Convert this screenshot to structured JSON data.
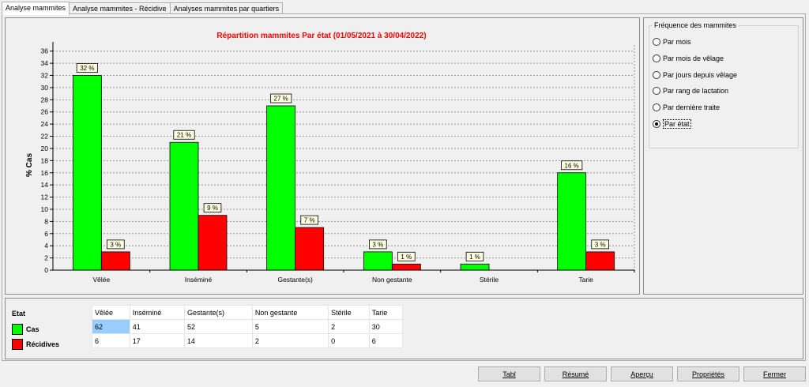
{
  "tabs": [
    {
      "label": "Analyse mammites",
      "active": true
    },
    {
      "label": "Analyse mammites - Récidive",
      "active": false
    },
    {
      "label": "Analyses mammites par quartiers",
      "active": false
    }
  ],
  "chart_data": {
    "type": "bar",
    "title": "Répartition mammites Par état (01/05/2021 à 30/04/2022)",
    "ylabel": "% Cas",
    "xlabel": "",
    "categories": [
      "Vêlée",
      "Inséminé",
      "Gestante(s)",
      "Non gestante",
      "Stérile",
      "Tarie"
    ],
    "ylim": [
      0,
      37
    ],
    "yticks": [
      0,
      2,
      4,
      6,
      8,
      10,
      12,
      14,
      16,
      18,
      20,
      22,
      24,
      26,
      28,
      30,
      32,
      34,
      36
    ],
    "grid": true,
    "series": [
      {
        "name": "Cas",
        "color": "#00ff00",
        "values": [
          32,
          21,
          27,
          3,
          1,
          16
        ],
        "labels": [
          "32 %",
          "21 %",
          "27 %",
          "3 %",
          "1 %",
          "16 %"
        ]
      },
      {
        "name": "Récidives",
        "color": "#ff0000",
        "values": [
          3,
          9,
          7,
          1,
          null,
          3
        ],
        "labels": [
          "3 %",
          "9 %",
          "7 %",
          "1 %",
          "",
          "3 %"
        ]
      }
    ]
  },
  "frequency": {
    "title": "Fréquence des mammites",
    "options": [
      {
        "label": "Par mois",
        "checked": false
      },
      {
        "label": "Par mois de vêlage",
        "checked": false
      },
      {
        "label": "Par jours depuis vêlage",
        "checked": false
      },
      {
        "label": "Par rang de lactation",
        "checked": false
      },
      {
        "label": "Par dernière traite",
        "checked": false
      },
      {
        "label": "Par état",
        "checked": true
      }
    ]
  },
  "legend": {
    "title": "Etat",
    "items": [
      {
        "label": "Cas",
        "color": "#00ff00"
      },
      {
        "label": "Récidives",
        "color": "#ff0000"
      }
    ]
  },
  "table": {
    "headers": [
      "Vêlée",
      "Inséminé",
      "Gestante(s)",
      "Non gestante",
      "Stérile",
      "Tarie"
    ],
    "rows": [
      [
        "62",
        "41",
        "52",
        "5",
        "2",
        "30"
      ],
      [
        "6",
        "17",
        "14",
        "2",
        "0",
        "6"
      ]
    ]
  },
  "buttons": {
    "tabl": "Tabl",
    "resume": "Résumé",
    "apercu": "Aperçu",
    "proprietes": "Propriétés",
    "fermer": "Fermer"
  }
}
